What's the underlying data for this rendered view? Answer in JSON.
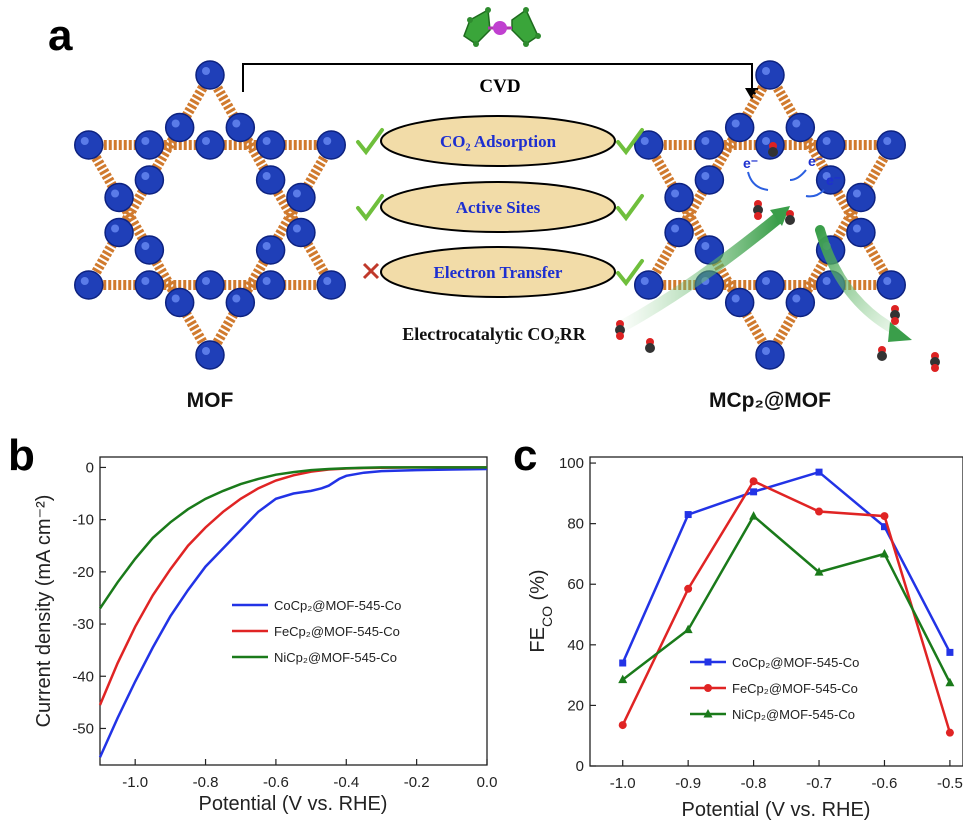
{
  "panel_labels": {
    "a": "a",
    "b": "b",
    "c": "c"
  },
  "scheme": {
    "cvd_label": "CVD",
    "mof_label": "MOF",
    "product_label": "MCp₂@MOF",
    "properties": [
      {
        "text": "CO₂ Adsorption",
        "mof_status": "check",
        "product_status": "check"
      },
      {
        "text": "Active Sites",
        "mof_status": "check",
        "product_status": "check"
      },
      {
        "text": "Electron Transfer",
        "mof_status": "cross",
        "product_status": "check"
      }
    ],
    "process_label": "Electrocatalytic CO₂RR",
    "electron_label": "e⁻",
    "colors": {
      "check": "#6fbf3c",
      "cross": "#c0392b",
      "oval": "#f2dca8",
      "framework": "#1f3fb8",
      "linker": "#d07a2e"
    }
  },
  "chart_data": [
    {
      "type": "line",
      "panel": "b",
      "xlabel": "Potential (V vs. RHE)",
      "ylabel": "Current density (mA cm⁻²)",
      "xlim": [
        -1.1,
        0.0
      ],
      "ylim": [
        -57,
        2
      ],
      "xticks": [
        "-1.0",
        "-0.8",
        "-0.6",
        "-0.4",
        "-0.2",
        "0.0"
      ],
      "yticks": [
        "0",
        "-10",
        "-20",
        "-30",
        "-40",
        "-50"
      ],
      "series": [
        {
          "name": "CoCp₂@MOF-545-Co",
          "color": "#2233e6",
          "x": [
            -1.1,
            -1.05,
            -1.0,
            -0.95,
            -0.9,
            -0.85,
            -0.8,
            -0.75,
            -0.7,
            -0.65,
            -0.6,
            -0.55,
            -0.5,
            -0.47,
            -0.45,
            -0.42,
            -0.4,
            -0.35,
            -0.3,
            -0.2,
            -0.1,
            0.0
          ],
          "y": [
            -55.5,
            -48,
            -41,
            -34.5,
            -28.5,
            -23.5,
            -19,
            -15.5,
            -12,
            -8.5,
            -6,
            -5,
            -4.5,
            -4,
            -3.5,
            -2.2,
            -1.6,
            -1,
            -0.7,
            -0.5,
            -0.4,
            -0.3
          ]
        },
        {
          "name": "FeCp₂@MOF-545-Co",
          "color": "#e02424",
          "x": [
            -1.1,
            -1.05,
            -1.0,
            -0.95,
            -0.9,
            -0.85,
            -0.8,
            -0.75,
            -0.7,
            -0.65,
            -0.6,
            -0.55,
            -0.5,
            -0.45,
            -0.4,
            -0.35,
            -0.3,
            -0.2,
            -0.1,
            0.0
          ],
          "y": [
            -45.5,
            -37.5,
            -30.5,
            -24.5,
            -19.5,
            -15,
            -11.5,
            -8.5,
            -6,
            -4,
            -2.5,
            -1.5,
            -0.8,
            -0.4,
            -0.2,
            -0.1,
            -0.05,
            0,
            0,
            0
          ]
        },
        {
          "name": "NiCp₂@MOF-545-Co",
          "color": "#1a7a1a",
          "x": [
            -1.1,
            -1.05,
            -1.0,
            -0.95,
            -0.9,
            -0.85,
            -0.8,
            -0.75,
            -0.7,
            -0.65,
            -0.6,
            -0.55,
            -0.5,
            -0.45,
            -0.4,
            -0.35,
            -0.3,
            -0.2,
            -0.1,
            0.0
          ],
          "y": [
            -27,
            -22,
            -17.5,
            -13.5,
            -10.5,
            -8,
            -6,
            -4.5,
            -3.2,
            -2.2,
            -1.4,
            -0.9,
            -0.5,
            -0.3,
            -0.15,
            -0.05,
            0,
            0,
            0,
            0
          ]
        }
      ]
    },
    {
      "type": "line",
      "panel": "c",
      "xlabel": "Potential (V vs. RHE)",
      "ylabel": "FE",
      "ylabel_sub": "CO",
      "ylabel_unit": " (%)",
      "xlim": [
        -1.05,
        -0.48
      ],
      "ylim": [
        0,
        102
      ],
      "xticks": [
        "-1.0",
        "-0.9",
        "-0.8",
        "-0.7",
        "-0.6",
        "-0.5"
      ],
      "yticks": [
        "0",
        "20",
        "40",
        "60",
        "80",
        "100"
      ],
      "series": [
        {
          "name": "CoCp₂@MOF-545-Co",
          "color": "#2233e6",
          "marker": "square",
          "x": [
            -1.0,
            -0.9,
            -0.8,
            -0.7,
            -0.6,
            -0.5
          ],
          "y": [
            34,
            83,
            90.5,
            97,
            79,
            37.5
          ]
        },
        {
          "name": "FeCp₂@MOF-545-Co",
          "color": "#e02424",
          "marker": "circle",
          "x": [
            -1.0,
            -0.9,
            -0.8,
            -0.7,
            -0.6,
            -0.5
          ],
          "y": [
            13.5,
            58.5,
            94,
            84,
            82.5,
            11
          ]
        },
        {
          "name": "NiCp₂@MOF-545-Co",
          "color": "#1a7a1a",
          "marker": "triangle",
          "x": [
            -1.0,
            -0.9,
            -0.8,
            -0.7,
            -0.6,
            -0.5
          ],
          "y": [
            28.5,
            45,
            82.5,
            64,
            70,
            27.5
          ]
        }
      ]
    }
  ]
}
